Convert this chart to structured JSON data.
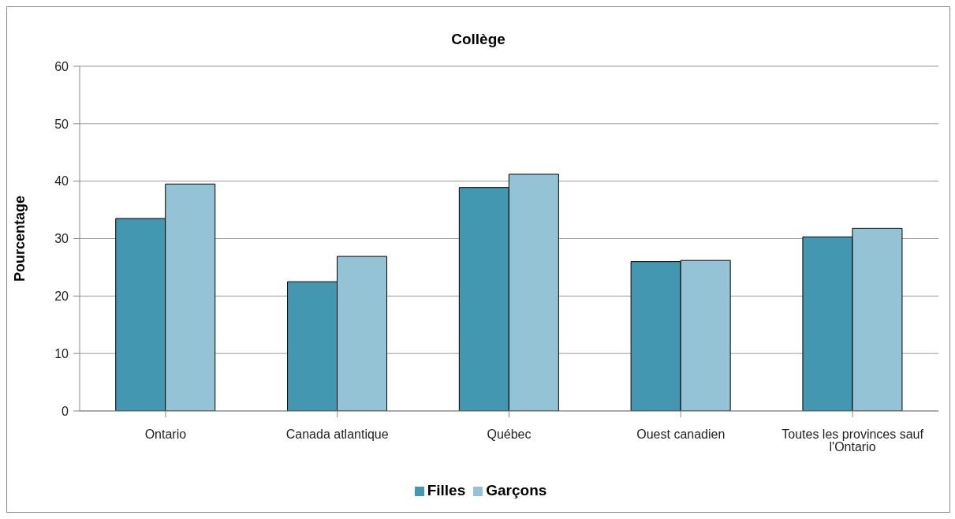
{
  "chart_data": {
    "type": "bar",
    "title": "Collège",
    "ylabel": "Pourcentage",
    "categories": [
      "Ontario",
      "Canada atlantique",
      "Québec",
      "Ouest canadien",
      "Toutes les provinces sauf l'Ontario"
    ],
    "series": [
      {
        "name": "Filles",
        "color": "#4397b0",
        "values": [
          33.5,
          22.5,
          38.9,
          26.0,
          30.3
        ]
      },
      {
        "name": "Garçons",
        "color": "#94c3d5",
        "values": [
          39.5,
          26.9,
          41.2,
          26.2,
          31.8
        ]
      }
    ],
    "ylim": [
      0,
      60
    ],
    "yticks": [
      0,
      10,
      20,
      30,
      40,
      50,
      60
    ],
    "grid": "y",
    "legend": "bottom"
  }
}
